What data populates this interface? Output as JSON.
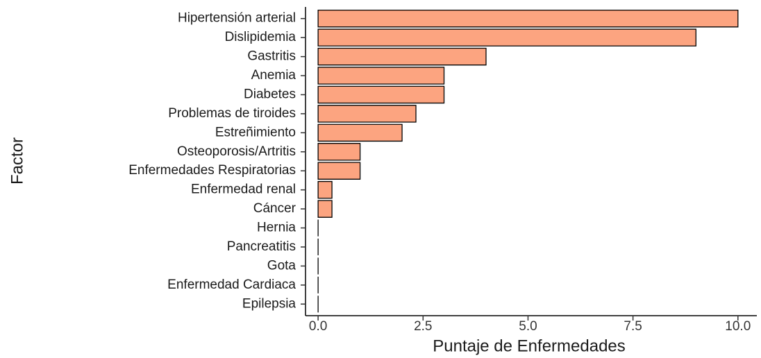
{
  "chart_data": {
    "type": "barh",
    "x_label": "Puntaje de Enfermedades",
    "y_label": "Factor",
    "categories": [
      "Hipertensión arterial",
      "Dislipidemia",
      "Gastritis",
      "Anemia",
      "Diabetes",
      "Problemas de tiroides",
      "Estreñimiento",
      "Osteoporosis/Artritis",
      "Enfermedades Respiratorias",
      "Enfermedad renal",
      "Cáncer",
      "Hernia",
      "Pancreatitis",
      "Gota",
      "Enfermedad Cardiaca",
      "Epilepsia"
    ],
    "values": [
      10,
      9,
      4,
      3,
      3,
      2.33,
      2,
      1,
      1,
      0.33,
      0.33,
      0,
      0,
      0,
      0,
      0
    ],
    "color": "#fca480",
    "xlim": [
      -0.3,
      10.45
    ],
    "xticks": [
      {
        "value": 0,
        "label": "0.0"
      },
      2.5,
      {
        "value": 5,
        "label": "5.0"
      },
      7.5,
      {
        "value": 10,
        "label": "10.0"
      }
    ],
    "grid": false
  }
}
